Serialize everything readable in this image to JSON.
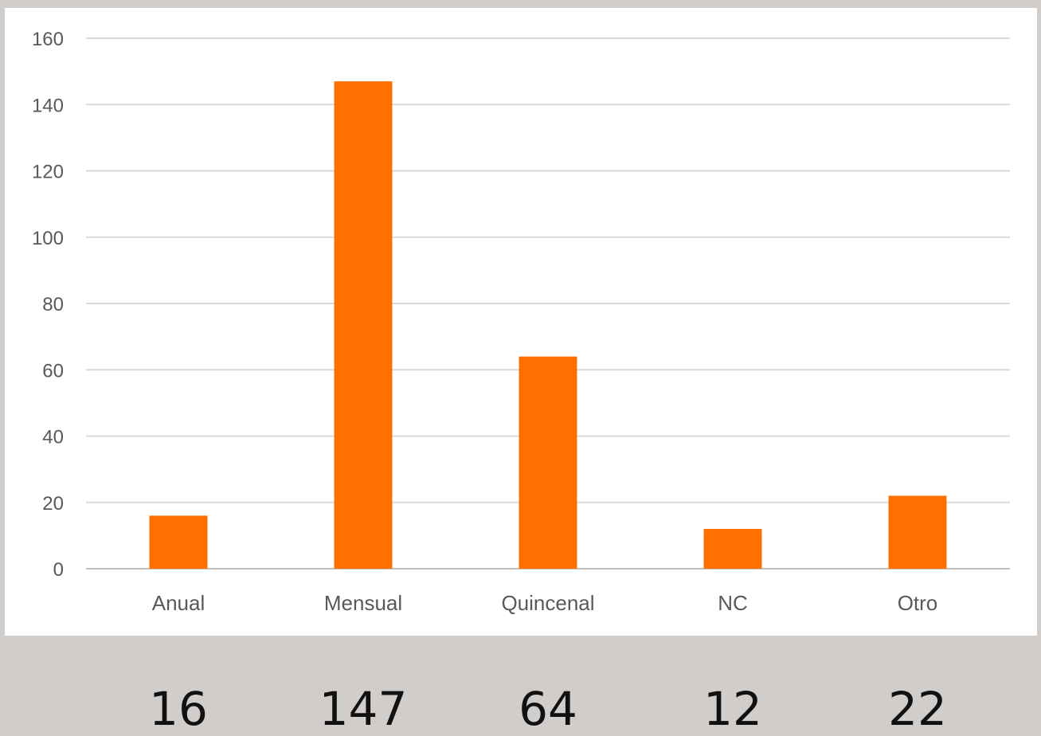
{
  "chart_data": {
    "type": "bar",
    "categories": [
      "Anual",
      "Mensual",
      "Quincenal",
      "NC",
      "Otro"
    ],
    "values": [
      16,
      147,
      64,
      12,
      22
    ],
    "title": "",
    "xlabel": "",
    "ylabel": "",
    "ylim": [
      0,
      160
    ],
    "yticks": [
      0,
      20,
      40,
      60,
      80,
      100,
      120,
      140,
      160
    ],
    "grid": true,
    "legend": "none",
    "bar_color": "#ff7000",
    "grid_color": "#d9d9d9",
    "value_labels": [
      "16",
      "147",
      "64",
      "12",
      "22"
    ]
  }
}
